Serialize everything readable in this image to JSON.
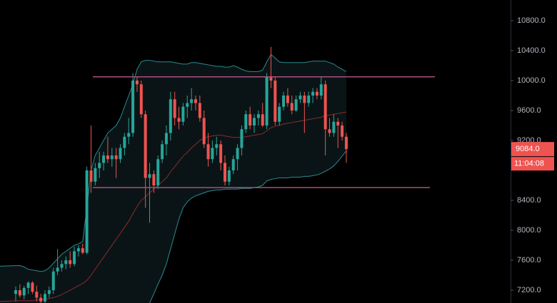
{
  "chart_data": {
    "type": "candlestick",
    "open": [
      7150,
      7200,
      7130,
      7230,
      7300,
      7180,
      7100,
      7050,
      7150,
      7200,
      7450,
      7500,
      7550,
      7600,
      7550,
      7720,
      7760,
      7700,
      8800,
      8650,
      8830,
      8900,
      9000,
      8950,
      9000,
      8950,
      9100,
      9250,
      9300,
      10000,
      9950,
      9550,
      8700,
      8750,
      8600,
      8950,
      9150,
      9300,
      9750,
      9500,
      9450,
      9650,
      9700,
      9750,
      9700,
      9500,
      9150,
      8950,
      9100,
      9150,
      8900,
      8650,
      8800,
      8950,
      9100,
      9350,
      9550,
      9400,
      9500,
      9550,
      9400,
      10050,
      10000,
      9450,
      9650,
      9800,
      9700,
      9600,
      9750,
      9800,
      9700,
      9800,
      9850,
      9800,
      9950,
      9350,
      9300,
      9450,
      9400,
      9250
    ],
    "high": [
      7250,
      7280,
      7260,
      7320,
      7320,
      7260,
      7150,
      7200,
      7250,
      7500,
      7750,
      7600,
      7650,
      7720,
      7780,
      7800,
      7820,
      8850,
      9400,
      8900,
      9050,
      9050,
      9250,
      9100,
      9100,
      9150,
      9300,
      9500,
      10100,
      10050,
      10000,
      9600,
      8900,
      8800,
      9000,
      9200,
      9400,
      9850,
      9850,
      9650,
      9700,
      9800,
      9900,
      9800,
      9800,
      9600,
      9300,
      9200,
      9250,
      9200,
      9000,
      8850,
      9000,
      9150,
      9400,
      9600,
      9650,
      9550,
      9600,
      9700,
      10100,
      10450,
      10050,
      9700,
      9850,
      9900,
      9800,
      9800,
      9850,
      9850,
      9850,
      9900,
      9900,
      10050,
      10000,
      9500,
      9550,
      9500,
      9450,
      9300
    ],
    "low": [
      7050,
      7100,
      7080,
      7150,
      7150,
      7050,
      7000,
      7000,
      7100,
      7150,
      7400,
      7450,
      7480,
      7500,
      7520,
      7650,
      7680,
      7680,
      8500,
      8600,
      8700,
      8800,
      8900,
      8850,
      8700,
      8900,
      9000,
      9150,
      9250,
      9850,
      9500,
      8300,
      8100,
      8500,
      8550,
      8900,
      9000,
      9200,
      9400,
      9350,
      9400,
      9500,
      9600,
      9600,
      9450,
      9100,
      8850,
      8900,
      9000,
      8800,
      8600,
      8600,
      8750,
      8800,
      9000,
      9300,
      9350,
      9300,
      9400,
      9380,
      9350,
      9900,
      9400,
      9400,
      9600,
      9650,
      9550,
      9580,
      9700,
      9300,
      9650,
      9700,
      9750,
      9750,
      9000,
      9250,
      9250,
      9100,
      9200,
      8900
    ],
    "close": [
      7200,
      7130,
      7230,
      7300,
      7180,
      7100,
      7050,
      7150,
      7200,
      7450,
      7500,
      7550,
      7600,
      7550,
      7720,
      7760,
      7700,
      8800,
      8650,
      8830,
      8900,
      9000,
      8950,
      9000,
      8950,
      9100,
      9250,
      9300,
      10000,
      9950,
      9550,
      8700,
      8750,
      8600,
      8950,
      9150,
      9300,
      9750,
      9500,
      9450,
      9650,
      9700,
      9750,
      9700,
      9500,
      9150,
      8950,
      9100,
      9150,
      8900,
      8650,
      8800,
      8950,
      9100,
      9350,
      9550,
      9400,
      9500,
      9550,
      9400,
      10050,
      10000,
      9450,
      9650,
      9800,
      9700,
      9600,
      9750,
      9800,
      9700,
      9800,
      9850,
      9800,
      9950,
      9350,
      9300,
      9450,
      9400,
      9250,
      9084
    ],
    "up_color": "#26a69a",
    "down_color": "#ef5350",
    "bands": {
      "color": "#2b8a8e",
      "middle_color": "#8c2a2a",
      "upper": [
        7520,
        7530,
        7510,
        7480,
        7470,
        7460,
        7450,
        7460,
        7500,
        7560,
        7620,
        7680,
        7720,
        7760,
        7800,
        7820,
        7850,
        8300,
        8800,
        9000,
        9100,
        9200,
        9300,
        9350,
        9400,
        9500,
        9650,
        9800,
        9950,
        10150,
        10250,
        10270,
        10270,
        10260,
        10250,
        10250,
        10250,
        10250,
        10240,
        10230,
        10220,
        10220,
        10240,
        10240,
        10230,
        10220,
        10210,
        10200,
        10190,
        10190,
        10180,
        10180,
        10200,
        10180,
        10150,
        10130,
        10120,
        10120,
        10120,
        10140,
        10250,
        10350,
        10300,
        10250,
        10240,
        10240,
        10240,
        10240,
        10240,
        10240,
        10250,
        10260,
        10260,
        10260,
        10260,
        10240,
        10220,
        10180,
        10150,
        10120
      ],
      "middle": [
        7050,
        7060,
        7060,
        7060,
        7060,
        7070,
        7070,
        7080,
        7090,
        7100,
        7120,
        7140,
        7170,
        7200,
        7230,
        7260,
        7290,
        7330,
        7400,
        7480,
        7560,
        7640,
        7720,
        7800,
        7880,
        7960,
        8040,
        8120,
        8220,
        8320,
        8400,
        8450,
        8500,
        8550,
        8600,
        8650,
        8700,
        8780,
        8850,
        8920,
        8990,
        9040,
        9100,
        9150,
        9200,
        9230,
        9250,
        9260,
        9270,
        9270,
        9260,
        9250,
        9240,
        9240,
        9240,
        9250,
        9260,
        9270,
        9280,
        9290,
        9330,
        9370,
        9390,
        9400,
        9420,
        9430,
        9440,
        9450,
        9460,
        9470,
        9480,
        9490,
        9500,
        9510,
        9530,
        9540,
        9550,
        9560,
        9570,
        9580
      ],
      "lower": [
        null,
        null,
        null,
        null,
        null,
        null,
        null,
        null,
        null,
        null,
        null,
        null,
        null,
        null,
        null,
        null,
        null,
        null,
        null,
        null,
        null,
        null,
        null,
        null,
        null,
        null,
        null,
        null,
        null,
        null,
        null,
        null,
        7030,
        7150,
        7280,
        7400,
        7550,
        7750,
        7950,
        8150,
        8300,
        8380,
        8430,
        8460,
        8480,
        8500,
        8520,
        8530,
        8540,
        8540,
        8550,
        8550,
        8550,
        8550,
        8560,
        8560,
        8560,
        8570,
        8580,
        8600,
        8660,
        8680,
        8690,
        8700,
        8700,
        8700,
        8710,
        8710,
        8710,
        8720,
        8720,
        8730,
        8740,
        8760,
        8790,
        8820,
        8860,
        8920,
        8990,
        9060
      ]
    },
    "levels": [
      10050,
      8570
    ],
    "level_color": "#a8507e",
    "ylim": [
      7029,
      11076
    ],
    "yticks": [
      {
        "value": 7200,
        "label": "7200.0"
      },
      {
        "value": 7600,
        "label": "7600.0"
      },
      {
        "value": 8000,
        "label": "8000.0"
      },
      {
        "value": 8400,
        "label": "8400.0"
      },
      {
        "value": 9200,
        "label": "9200.0"
      },
      {
        "value": 9600,
        "label": "9600.0"
      },
      {
        "value": 10000,
        "label": "10000.0"
      },
      {
        "value": 10400,
        "label": "10400.0"
      },
      {
        "value": 10800,
        "label": "10800.0"
      }
    ],
    "last_price": {
      "value": 9084,
      "label": "9084.0"
    },
    "countdown": "11:04:08"
  }
}
